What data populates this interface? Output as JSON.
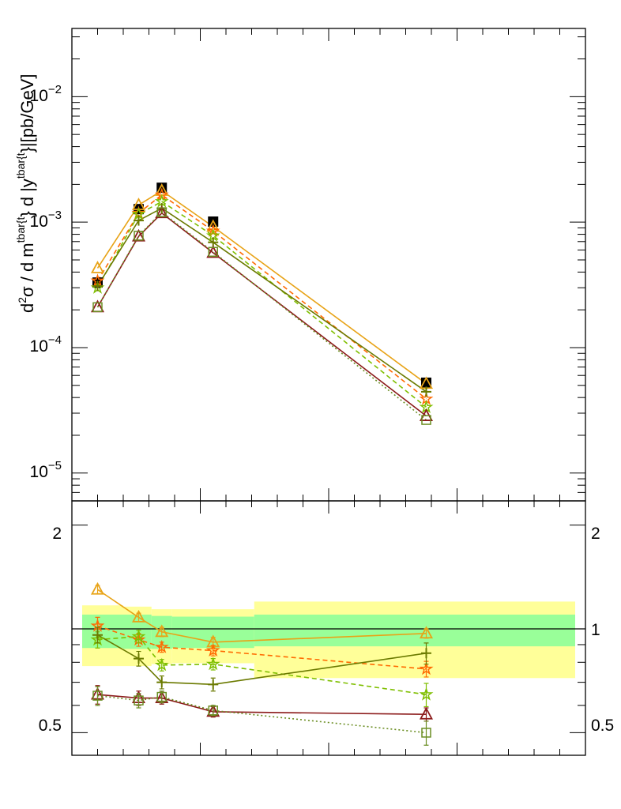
{
  "chart_data": [
    {
      "type": "scatter",
      "yscale": "log",
      "ylim": [
        6e-06,
        0.035
      ],
      "xlim": [
        0,
        1
      ],
      "ylabel": "d²σ / d m^{tbar{t}} d |y^{tbar{t}}|[pb/GeV]",
      "ylabel_parts": {
        "prefix": "d",
        "sup1": "2",
        "mid": "σ / d m",
        "sup2": "tbar{t",
        "mid2": "} d |y",
        "sup3": "tbar{t",
        "suffix": "}|[pb/GeV]"
      },
      "yticks": [
        {
          "value": 1e-05,
          "mantissa": "10",
          "exp": "−5"
        },
        {
          "value": 0.0001,
          "mantissa": "10",
          "exp": "−4"
        },
        {
          "value": 0.001,
          "mantissa": "10",
          "exp": "−3"
        },
        {
          "value": 0.01,
          "mantissa": "10",
          "exp": "−2"
        }
      ],
      "x": [
        0.05,
        0.13,
        0.175,
        0.275,
        0.69
      ],
      "series": [
        {
          "style": "data",
          "color": "#000000",
          "marker": "square-filled",
          "values": [
            0.00033,
            0.00127,
            0.00188,
            0.00101,
            5.25e-05
          ]
        },
        {
          "color": "#e8a317",
          "marker": "triangle",
          "dash": "solid",
          "values": [
            0.00043,
            0.00137,
            0.00178,
            0.00092,
            5.15e-05
          ]
        },
        {
          "color": "#ff6a00",
          "marker": "star",
          "dash": "dashed",
          "values": [
            0.00034,
            0.00118,
            0.00165,
            0.00085,
            3.9e-05
          ]
        },
        {
          "color": "#7fbf00",
          "marker": "star",
          "dash": "dashed",
          "values": [
            0.0003,
            0.00116,
            0.00146,
            0.00078,
            3.35e-05
          ]
        },
        {
          "color": "#6b7a00",
          "marker": "cross",
          "dash": "solid",
          "values": [
            0.00031,
            0.00103,
            0.00129,
            0.00069,
            4.45e-05
          ]
        },
        {
          "color": "#8b1a1a",
          "marker": "triangle",
          "dash": "solid",
          "values": [
            0.00021,
            0.00077,
            0.00118,
            0.00057,
            2.85e-05
          ]
        },
        {
          "color": "#6b8e23",
          "marker": "square",
          "dash": "dotted",
          "values": [
            0.00021,
            0.00078,
            0.0012,
            0.00058,
            2.65e-05
          ]
        }
      ]
    },
    {
      "type": "line",
      "yscale": "log",
      "ylim": [
        0.43,
        2.35
      ],
      "xlim": [
        0,
        1
      ],
      "reference_line": 1,
      "yticks": [
        {
          "value": 0.5,
          "label": "0.5"
        },
        {
          "value": 1,
          "label": "1"
        },
        {
          "value": 2,
          "label": "2"
        }
      ],
      "bands": [
        {
          "x0": 0.02,
          "x1": 0.1,
          "inner": [
            0.88,
            1.1
          ],
          "outer": [
            0.78,
            1.17
          ]
        },
        {
          "x0": 0.1,
          "x1": 0.155,
          "inner": [
            0.875,
            1.1
          ],
          "outer": [
            0.78,
            1.16
          ]
        },
        {
          "x0": 0.155,
          "x1": 0.195,
          "inner": [
            0.875,
            1.09
          ],
          "outer": [
            0.79,
            1.14
          ]
        },
        {
          "x0": 0.195,
          "x1": 0.355,
          "inner": [
            0.88,
            1.085
          ],
          "outer": [
            0.795,
            1.14
          ]
        },
        {
          "x0": 0.355,
          "x1": 0.98,
          "inner": [
            0.89,
            1.1
          ],
          "outer": [
            0.72,
            1.2
          ]
        }
      ],
      "band_colors": {
        "inner": "#99ff99",
        "outer": "#ffff99"
      },
      "x": [
        0.05,
        0.13,
        0.175,
        0.275,
        0.69
      ],
      "series": [
        {
          "color": "#e8a317",
          "marker": "triangle",
          "dash": "solid",
          "values": [
            1.3,
            1.08,
            0.98,
            0.915,
            0.97
          ],
          "err": [
            0.035,
            0.03,
            0.03,
            0.03,
            0.03
          ]
        },
        {
          "color": "#ff6a00",
          "marker": "star",
          "dash": "dashed",
          "values": [
            1.02,
            0.93,
            0.885,
            0.865,
            0.765
          ],
          "err": [
            0.06,
            0.04,
            0.03,
            0.03,
            0.04
          ]
        },
        {
          "color": "#7fbf00",
          "marker": "star",
          "dash": "dashed",
          "values": [
            0.93,
            0.95,
            0.785,
            0.79,
            0.645
          ],
          "err": [
            0.05,
            0.04,
            0.03,
            0.03,
            0.05
          ]
        },
        {
          "color": "#6b7a00",
          "marker": "cross",
          "dash": "solid",
          "values": [
            0.96,
            0.82,
            0.7,
            0.69,
            0.85
          ],
          "err": [
            0.05,
            0.04,
            0.03,
            0.03,
            0.06
          ]
        },
        {
          "color": "#8b1a1a",
          "marker": "triangle",
          "dash": "solid",
          "values": [
            0.645,
            0.63,
            0.63,
            0.575,
            0.565
          ],
          "err": [
            0.04,
            0.03,
            0.025,
            0.02,
            0.025
          ]
        },
        {
          "color": "#6b8e23",
          "marker": "square",
          "dash": "dotted",
          "values": [
            0.64,
            0.62,
            0.635,
            0.58,
            0.5
          ],
          "err": [
            0.04,
            0.03,
            0.025,
            0.02,
            0.04
          ]
        }
      ]
    }
  ]
}
